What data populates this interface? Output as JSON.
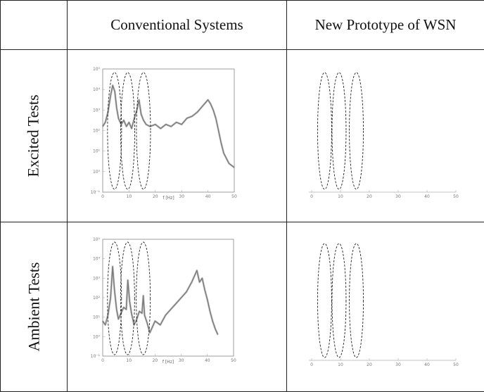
{
  "table": {
    "headers": [
      "",
      "Conventional Systems",
      "New Prototype of WSN"
    ],
    "rows": [
      {
        "label": "Excited Tests"
      },
      {
        "label": "Ambient Tests"
      }
    ]
  },
  "chart_data": [
    {
      "type": "line",
      "panel": "Excited Tests / Conventional Systems",
      "xlabel": "f [Hz]",
      "x_ticks": [
        "0",
        "10",
        "20",
        "30",
        "40",
        "50"
      ],
      "y_ticks": [
        "10⁵",
        "10⁴",
        "10³",
        "10²",
        "10¹",
        "10⁰",
        "10⁻¹"
      ],
      "xlim": [
        0,
        50
      ],
      "y_log_exponent_range": [
        -1,
        5
      ],
      "series": [
        {
          "x": [
            0,
            1,
            2,
            3,
            3.8,
            4.6,
            5.3,
            6,
            7,
            8,
            9,
            10,
            11,
            12,
            13,
            13.8,
            14.6,
            15.5,
            16.5,
            18,
            20,
            22,
            24,
            26,
            28,
            30,
            32,
            34,
            36,
            38,
            40,
            41,
            42,
            43,
            44,
            45,
            46,
            48,
            50
          ],
          "y_exp": [
            2.2,
            2.4,
            2.9,
            3.7,
            4.2,
            3.9,
            3.1,
            2.6,
            2.3,
            2.5,
            2.2,
            2.4,
            2.1,
            2.6,
            3.0,
            3.5,
            2.8,
            2.5,
            2.3,
            2.2,
            2.3,
            2.1,
            2.3,
            2.2,
            2.4,
            2.3,
            2.6,
            2.7,
            2.9,
            3.2,
            3.5,
            3.3,
            3.0,
            2.6,
            2.0,
            1.4,
            0.9,
            0.4,
            0.2
          ]
        }
      ],
      "highlight_regions": [
        {
          "x_center": 4.5
        },
        {
          "x_center": 9.5
        },
        {
          "x_center": 15.5
        }
      ]
    },
    {
      "type": "line",
      "panel": "Excited Tests / New Prototype of WSN",
      "x_ticks": [
        "0",
        "10",
        "20",
        "30",
        "40",
        "50"
      ],
      "xlim": [
        0,
        50
      ],
      "series": [],
      "highlight_regions": [
        {
          "x_center": 4.5
        },
        {
          "x_center": 9.5
        },
        {
          "x_center": 15.5
        }
      ]
    },
    {
      "type": "line",
      "panel": "Ambient Tests / Conventional Systems",
      "xlabel": "f [Hz]",
      "x_ticks": [
        "0",
        "10",
        "20",
        "30",
        "40",
        "50"
      ],
      "y_ticks": [
        "10⁵",
        "10⁴",
        "10³",
        "10²",
        "10¹",
        "10⁰",
        "10⁻¹"
      ],
      "xlim": [
        0,
        50
      ],
      "y_log_exponent_range": [
        -1,
        5
      ],
      "series": [
        {
          "x": [
            0,
            1,
            2,
            3,
            3.8,
            4.5,
            5.3,
            6,
            7,
            8,
            9,
            9.6,
            10.3,
            11,
            12,
            13,
            14,
            15,
            15.5,
            16,
            17,
            18,
            20,
            22,
            24,
            26,
            28,
            30,
            32,
            34,
            36,
            37,
            38,
            39,
            40,
            41,
            42,
            43,
            44
          ],
          "y_exp": [
            0.8,
            0.6,
            1.1,
            2.0,
            3.6,
            2.4,
            1.4,
            0.9,
            1.2,
            1.5,
            1.4,
            2.9,
            1.8,
            1.2,
            0.6,
            0.9,
            1.3,
            1.2,
            2.1,
            1.1,
            0.7,
            0.2,
            0.8,
            0.6,
            1.1,
            1.4,
            1.7,
            2.0,
            2.3,
            2.8,
            3.4,
            2.8,
            3.0,
            2.4,
            1.9,
            1.3,
            0.8,
            0.4,
            0.1
          ]
        }
      ],
      "highlight_regions": [
        {
          "x_center": 4.5
        },
        {
          "x_center": 9.5
        },
        {
          "x_center": 15.5
        }
      ]
    },
    {
      "type": "line",
      "panel": "Ambient Tests / New Prototype of WSN",
      "x_ticks": [
        "0",
        "10",
        "20",
        "30",
        "40",
        "50"
      ],
      "xlim": [
        0,
        50
      ],
      "series": [],
      "highlight_regions": [
        {
          "x_center": 4.5
        },
        {
          "x_center": 9.5
        },
        {
          "x_center": 15.5
        }
      ]
    }
  ]
}
